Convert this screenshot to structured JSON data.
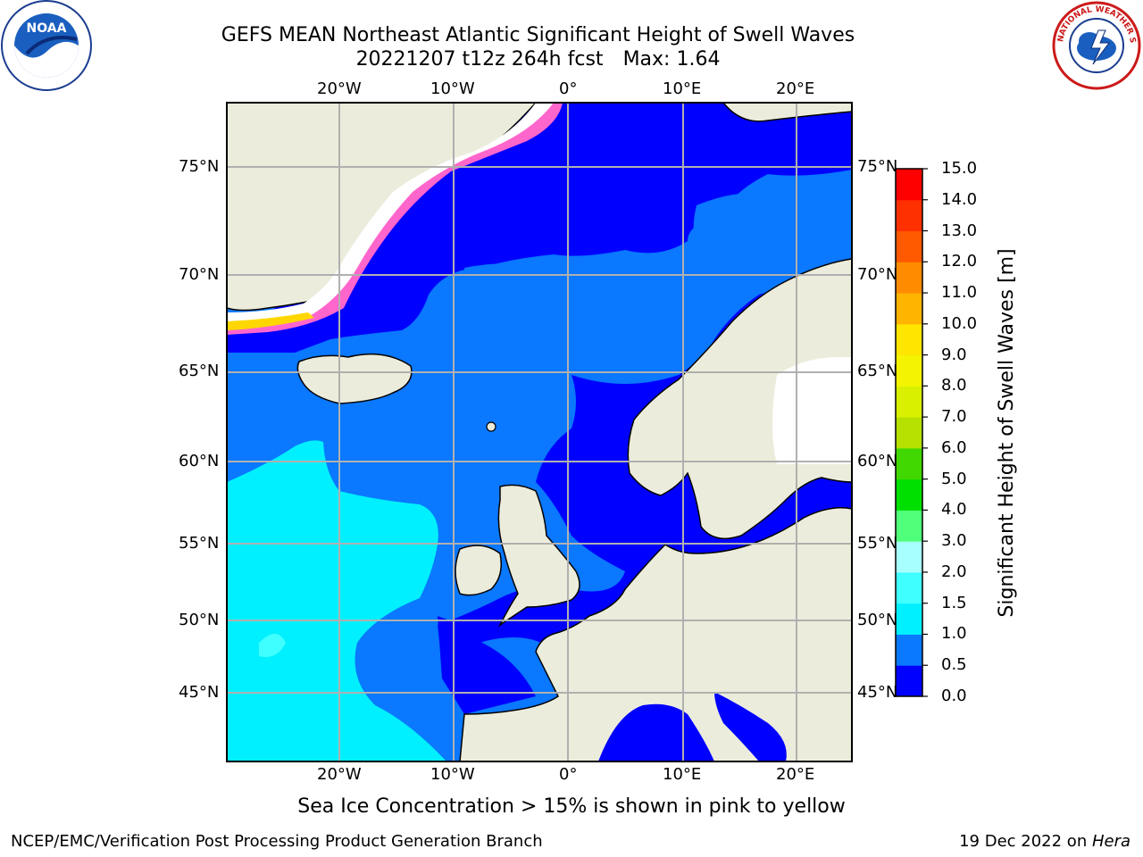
{
  "title": {
    "line1": "GEFS MEAN Northeast Atlantic Significant Height of Swell Waves",
    "line2_run": "20221207 t12z 264h fcst",
    "line2_max": "Max: 1.64"
  },
  "map": {
    "lon_labels": [
      "20°W",
      "10°W",
      "0°",
      "10°E",
      "20°E"
    ],
    "lat_labels": [
      "75°N",
      "70°N",
      "65°N",
      "60°N",
      "55°N",
      "50°N",
      "45°N"
    ],
    "projection": "polar stereographic",
    "regions": [
      {
        "name": "Greenland",
        "value_class": "land/ice"
      },
      {
        "name": "Iceland",
        "value_class": "land"
      },
      {
        "name": "Scandinavia",
        "value_class": "land"
      },
      {
        "name": "British Isles",
        "value_class": "land"
      },
      {
        "name": "Western Europe",
        "value_class": "land"
      }
    ],
    "colors": {
      "land": "#ececdc",
      "ice_free_land": "#ffffff",
      "sea_ice_pink": "#ff66cc",
      "sea_ice_yellow": "#ffd700"
    }
  },
  "colorbar": {
    "label": "Significant Height of Swell Waves [m]",
    "ticks": [
      "0.0",
      "0.5",
      "1.0",
      "1.5",
      "2.0",
      "3.0",
      "4.0",
      "5.0",
      "6.0",
      "7.0",
      "8.0",
      "9.0",
      "10.0",
      "11.0",
      "12.0",
      "13.0",
      "14.0",
      "15.0"
    ],
    "colors": [
      "#0000ff",
      "#0a78ff",
      "#00f0ff",
      "#40ffff",
      "#a8ffff",
      "#50ff7a",
      "#00e000",
      "#40d800",
      "#b6e000",
      "#d9f000",
      "#f4f400",
      "#ffe600",
      "#ffb400",
      "#ff8c00",
      "#ff5a00",
      "#ff3000",
      "#ff0000"
    ]
  },
  "caption": "Sea Ice Concentration > 15% is shown in pink to yellow",
  "footer": {
    "left": "NCEP/EMC/Verification Post Processing Product Generation Branch",
    "right_date": "19 Dec 2022 on ",
    "right_machine": "Hera"
  },
  "logos": {
    "left": "NOAA",
    "right": "NATIONAL WEATHER SERVICE"
  }
}
